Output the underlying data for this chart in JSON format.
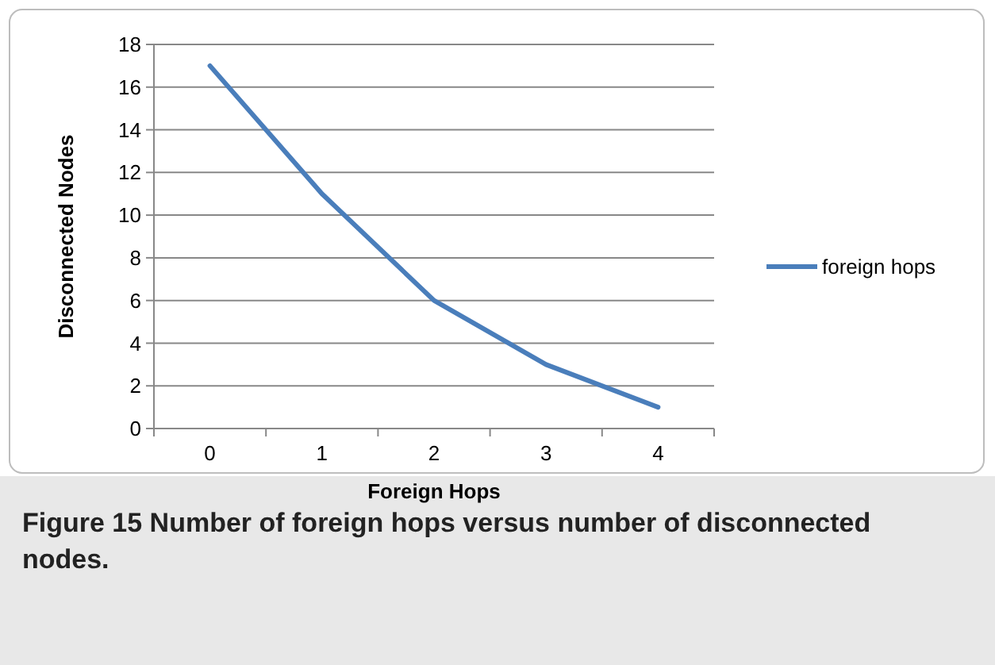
{
  "chart_data": {
    "type": "line",
    "xlabel": "Foreign Hops",
    "ylabel": "Disconnected Nodes",
    "categories": [
      "0",
      "1",
      "2",
      "3",
      "4"
    ],
    "series": [
      {
        "name": "foreign hops",
        "color": "#4a7ebb",
        "values": [
          17,
          11,
          6,
          3,
          1
        ]
      }
    ],
    "ylim": [
      0,
      18
    ],
    "yticks": [
      0,
      2,
      4,
      6,
      8,
      10,
      12,
      14,
      16,
      18
    ],
    "grid": "y",
    "legend": "right",
    "marker": "none",
    "line_style": "solid",
    "annotations": [
      "Figure 15 Number of foreign hops versus number of disconnected nodes."
    ]
  }
}
